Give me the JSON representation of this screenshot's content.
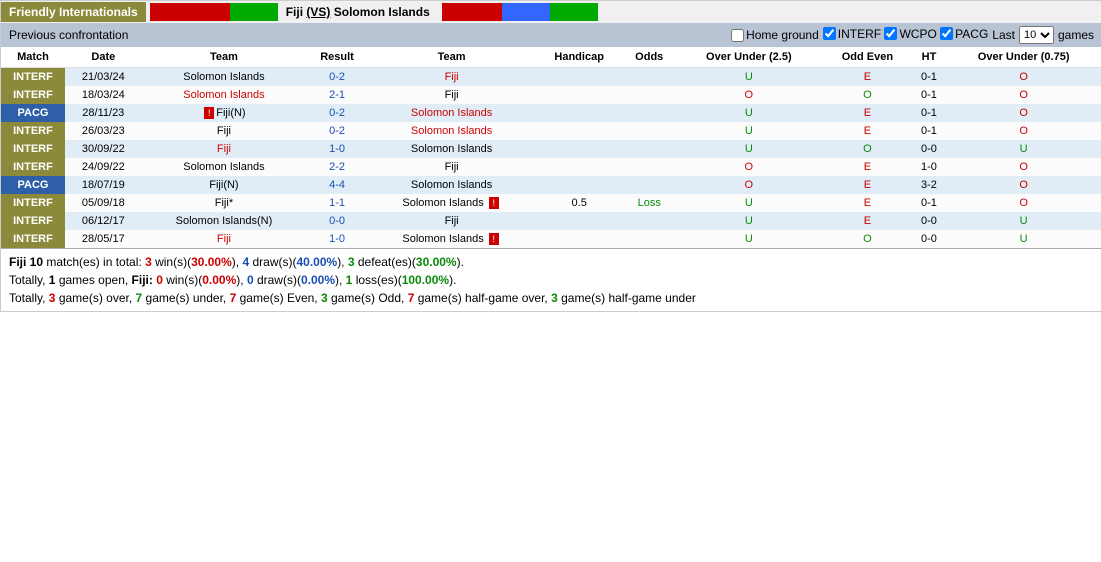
{
  "header": {
    "label": "Friendly Internationals",
    "stripe1": [
      "#c00",
      80,
      "#0a0",
      48
    ],
    "home": "Fiji",
    "vs": "(VS)",
    "away": "Solomon Islands",
    "stripe2": [
      "#c00",
      60,
      "#36f",
      48,
      "#0a0",
      48
    ]
  },
  "subheader": {
    "title": "Previous confrontation",
    "homeGround": "Home ground",
    "tags": [
      "INTERF",
      "WCPO",
      "PACG"
    ],
    "checked": [
      true,
      true,
      true
    ],
    "last": "Last",
    "games": "games",
    "sel": "10"
  },
  "cols": [
    "Match",
    "Date",
    "Team",
    "Result",
    "Team",
    "Handicap",
    "Odds",
    "Over Under (2.5)",
    "Odd Even",
    "HT",
    "Over Under (0.75)"
  ],
  "rows": [
    {
      "m": "INTERF",
      "mk": "interf",
      "d": "21/03/24",
      "t1": "Solomon Islands",
      "t1c": "",
      "rc1": "",
      "res": "0-2",
      "t2": "Fiji",
      "t2c": "red",
      "rc2": "",
      "hc": "",
      "odds": "",
      "ou25": "U",
      "ou25c": "green",
      "oe": "E",
      "oec": "red",
      "ht": "0-1",
      "ou75": "O",
      "ou75c": "red"
    },
    {
      "m": "INTERF",
      "mk": "interf",
      "d": "18/03/24",
      "t1": "Solomon Islands",
      "t1c": "red",
      "rc1": "",
      "res": "2-1",
      "t2": "Fiji",
      "t2c": "",
      "rc2": "",
      "hc": "",
      "odds": "",
      "ou25": "O",
      "ou25c": "red",
      "oe": "O",
      "oec": "green",
      "ht": "0-1",
      "ou75": "O",
      "ou75c": "red"
    },
    {
      "m": "PACG",
      "mk": "pacg",
      "d": "28/11/23",
      "t1": "Fiji(N)",
      "t1c": "",
      "rc1": "1",
      "res": "0-2",
      "t2": "Solomon Islands",
      "t2c": "red",
      "rc2": "",
      "hc": "",
      "odds": "",
      "ou25": "U",
      "ou25c": "green",
      "oe": "E",
      "oec": "red",
      "ht": "0-1",
      "ou75": "O",
      "ou75c": "red"
    },
    {
      "m": "INTERF",
      "mk": "interf",
      "d": "26/03/23",
      "t1": "Fiji",
      "t1c": "",
      "rc1": "",
      "res": "0-2",
      "t2": "Solomon Islands",
      "t2c": "red",
      "rc2": "",
      "hc": "",
      "odds": "",
      "ou25": "U",
      "ou25c": "green",
      "oe": "E",
      "oec": "red",
      "ht": "0-1",
      "ou75": "O",
      "ou75c": "red"
    },
    {
      "m": "INTERF",
      "mk": "interf",
      "d": "30/09/22",
      "t1": "Fiji",
      "t1c": "red",
      "rc1": "",
      "res": "1-0",
      "t2": "Solomon Islands",
      "t2c": "",
      "rc2": "",
      "hc": "",
      "odds": "",
      "ou25": "U",
      "ou25c": "green",
      "oe": "O",
      "oec": "green",
      "ht": "0-0",
      "ou75": "U",
      "ou75c": "green"
    },
    {
      "m": "INTERF",
      "mk": "interf",
      "d": "24/09/22",
      "t1": "Solomon Islands",
      "t1c": "",
      "rc1": "",
      "res": "2-2",
      "t2": "Fiji",
      "t2c": "",
      "rc2": "",
      "hc": "",
      "odds": "",
      "ou25": "O",
      "ou25c": "red",
      "oe": "E",
      "oec": "red",
      "ht": "1-0",
      "ou75": "O",
      "ou75c": "red"
    },
    {
      "m": "PACG",
      "mk": "pacg",
      "d": "18/07/19",
      "t1": "Fiji(N)",
      "t1c": "",
      "rc1": "",
      "res": "4-4",
      "t2": "Solomon Islands",
      "t2c": "",
      "rc2": "",
      "hc": "",
      "odds": "",
      "ou25": "O",
      "ou25c": "red",
      "oe": "E",
      "oec": "red",
      "ht": "3-2",
      "ou75": "O",
      "ou75c": "red"
    },
    {
      "m": "INTERF",
      "mk": "interf",
      "d": "05/09/18",
      "t1": "Fiji*",
      "t1c": "",
      "rc1": "",
      "res": "1-1",
      "t2": "Solomon Islands",
      "t2c": "",
      "rc2": "1",
      "hc": "0.5",
      "odds": "Loss",
      "oddsc": "green",
      "ou25": "U",
      "ou25c": "green",
      "oe": "E",
      "oec": "red",
      "ht": "0-1",
      "ou75": "O",
      "ou75c": "red"
    },
    {
      "m": "INTERF",
      "mk": "interf",
      "d": "06/12/17",
      "t1": "Solomon Islands(N)",
      "t1c": "",
      "rc1": "",
      "res": "0-0",
      "t2": "Fiji",
      "t2c": "",
      "rc2": "",
      "hc": "",
      "odds": "",
      "ou25": "U",
      "ou25c": "green",
      "oe": "E",
      "oec": "red",
      "ht": "0-0",
      "ou75": "U",
      "ou75c": "green"
    },
    {
      "m": "INTERF",
      "mk": "interf",
      "d": "28/05/17",
      "t1": "Fiji",
      "t1c": "red",
      "rc1": "",
      "res": "1-0",
      "t2": "Solomon Islands",
      "t2c": "",
      "rc2": "1",
      "hc": "",
      "odds": "",
      "ou25": "U",
      "ou25c": "green",
      "oe": "O",
      "oec": "green",
      "ht": "0-0",
      "ou75": "U",
      "ou75c": "green"
    }
  ],
  "summary": {
    "l1": {
      "a": "Fiji 10",
      "b": " match(es) in total: ",
      "w": "3",
      "c": " win(s)(",
      "wp": "30.00%",
      "d": "), ",
      "dr": "4",
      "e": " draw(s)(",
      "dp": "40.00%",
      "f": "), ",
      "l": "3",
      "g": " defeat(es)(",
      "lp": "30.00%",
      "h": ")."
    },
    "l2": {
      "a": "Totally, ",
      "o": "1",
      "b": " games open, ",
      "t": "Fiji: ",
      "w": "0",
      "c": " win(s)(",
      "wp": "0.00%",
      "d": "), ",
      "dr": "0",
      "e": " draw(s)(",
      "dp": "0.00%",
      "f": "), ",
      "l": "1",
      "g": " loss(es)(",
      "lp": "100.00%",
      "h": ")."
    },
    "l3": {
      "a": "Totally, ",
      "ov": "3",
      "b": " game(s) over, ",
      "un": "7",
      "c": " game(s) under, ",
      "ev": "7",
      "d": " game(s) Even, ",
      "od": "3",
      "e": " game(s) Odd, ",
      "ho": "7",
      "f": " game(s) half-game over, ",
      "hu": "3",
      "g": " game(s) half-game under"
    }
  }
}
